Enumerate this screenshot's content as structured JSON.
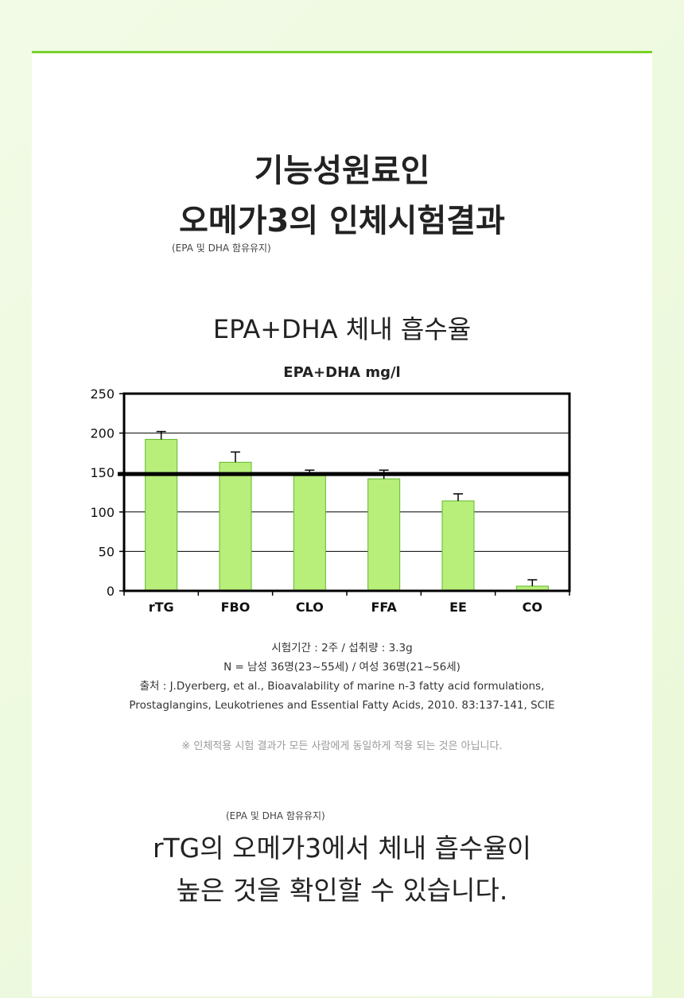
{
  "page": {
    "title_line1": "기능성원료인",
    "title_line2": "오메가3의 인체시험결과",
    "title_note": "(EPA 및 DHA 함유유지)",
    "chart_heading": "EPA+DHA 체내 흡수율",
    "notes": [
      "시험기간 : 2주 / 섭취량 : 3.3g",
      "N = 남성 36명(23~55세) / 여성 36명(21~56세)",
      "출처 : J.Dyerberg, et al., Bioavalability of marine n-3 fatty acid formulations,",
      "Prostaglangins, Leukotrienes and Essential Fatty Acids, 2010. 83:137-141, SCIE"
    ],
    "disclaimer": "※ 인체적용 시험 결과가 모든 사람에게 동일하게 적용 되는 것은 아닙니다.",
    "bottom_note": "(EPA 및 DHA 함유유지)",
    "bottom_line1": "rTG의 오메가3에서 체내 흡수율이",
    "bottom_line2": "높은 것을 확인할 수 있습니다.",
    "accent_color": "#77d22a"
  },
  "chart_data": {
    "type": "bar",
    "title": "EPA+DHA mg/l",
    "categories": [
      "rTG",
      "FBO",
      "CLO",
      "FFA",
      "EE",
      "CO"
    ],
    "values": [
      192,
      163,
      147,
      142,
      114,
      6
    ],
    "error_upper": [
      202,
      176,
      153,
      153,
      123,
      14
    ],
    "reference_line": 148,
    "ylim": [
      0,
      250
    ],
    "yticks": [
      0,
      50,
      100,
      150,
      200,
      250
    ],
    "bar_color": "#b8ee7a",
    "bar_edge_color": "#62b92a",
    "grid": true,
    "legend": "none"
  }
}
